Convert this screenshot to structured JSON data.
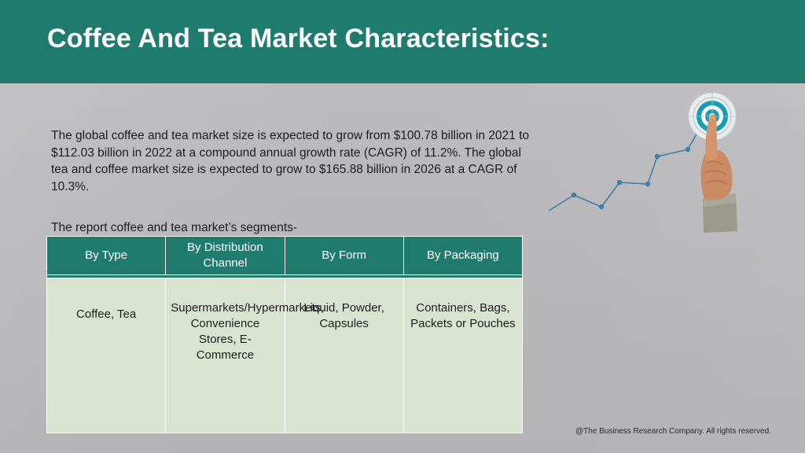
{
  "header": {
    "title": "Coffee And Tea Market Characteristics:"
  },
  "intro": {
    "text": "The global coffee and tea market size is expected to grow from $100.78 billion in 2021 to $112.03 billion in 2022 at a compound annual growth rate (CAGR) of 11.2%. The global tea and coffee market size is expected to grow to $165.88 billion in 2026 at a CAGR of 10.3%."
  },
  "segments": {
    "label": "The report coffee and tea market’s segments-",
    "columns": [
      "By Type",
      "By Distribution Channel",
      "By Form",
      "By Packaging"
    ],
    "values": [
      "Coffee, Tea",
      "Supermarkets/Hypermarkets, Convenience Stores, E-Commerce",
      "Liquid, Powder, Capsules",
      "Containers, Bags, Packets or Pouches"
    ]
  },
  "decoration": {
    "icons": [
      "target-icon",
      "pointing-hand-icon",
      "growth-line-icon"
    ],
    "colors": {
      "header": "#1f7b6d",
      "line": "#3d7fa6",
      "target": "#1a9bb5"
    }
  },
  "footer": {
    "copyright": "@The Business Research Company. All rights reserved."
  }
}
